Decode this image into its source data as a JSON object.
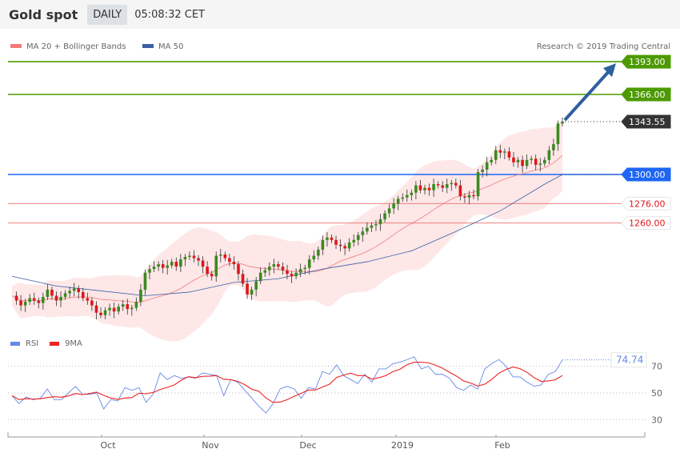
{
  "header": {
    "title": "Gold spot",
    "period": "DAILY",
    "time": "05:08:32 CET"
  },
  "legend": {
    "ma20": "MA 20 + Bollinger Bands",
    "ma50": "MA 50",
    "copyright": "Research © 2019 Trading Central",
    "rsi": "RSI",
    "rsi_ma": "9MA"
  },
  "colors": {
    "up": "#3a8a1e",
    "down": "#e0161b",
    "ma20": "#f47a7a",
    "band": "#fde3e3",
    "ma50": "#3a5fa8",
    "resistance": "#4c9a00",
    "pivot": "#1e66f5",
    "support": "#f08080",
    "rsi": "#6688e8",
    "rsi_ma": "#ee2222"
  },
  "levels": [
    {
      "value": 1393.0,
      "label": "1393.00",
      "kind": "resistance"
    },
    {
      "value": 1366.0,
      "label": "1366.00",
      "kind": "resistance"
    },
    {
      "value": 1343.55,
      "label": "1343.55",
      "kind": "last"
    },
    {
      "value": 1300.0,
      "label": "1300.00",
      "kind": "pivot"
    },
    {
      "value": 1276.0,
      "label": "1276.00",
      "kind": "support"
    },
    {
      "value": 1260.0,
      "label": "1260.00",
      "kind": "support"
    }
  ],
  "chart_data": [
    {
      "type": "candlestick",
      "ylim": [
        1175,
        1404
      ],
      "closes": [
        1200,
        1196,
        1192,
        1195,
        1198,
        1196,
        1194,
        1199,
        1205,
        1200,
        1196,
        1199,
        1202,
        1204,
        1206,
        1203,
        1198,
        1196,
        1192,
        1186,
        1184,
        1188,
        1190,
        1187,
        1191,
        1193,
        1189,
        1190,
        1195,
        1205,
        1219,
        1222,
        1224,
        1226,
        1223,
        1225,
        1228,
        1224,
        1230,
        1232,
        1233,
        1231,
        1229,
        1224,
        1218,
        1216,
        1233,
        1234,
        1231,
        1228,
        1226,
        1218,
        1210,
        1201,
        1205,
        1212,
        1219,
        1221,
        1224,
        1226,
        1224,
        1221,
        1218,
        1216,
        1219,
        1222,
        1223,
        1230,
        1233,
        1238,
        1246,
        1248,
        1246,
        1242,
        1241,
        1239,
        1244,
        1246,
        1250,
        1253,
        1256,
        1258,
        1259,
        1263,
        1268,
        1272,
        1276,
        1280,
        1281,
        1283,
        1285,
        1291,
        1287,
        1289,
        1287,
        1292,
        1291,
        1289,
        1292,
        1293,
        1291,
        1282,
        1281,
        1283,
        1282,
        1302,
        1304,
        1310,
        1312,
        1320,
        1318,
        1319,
        1314,
        1310,
        1312,
        1307,
        1312,
        1313,
        1308,
        1309,
        1312,
        1320,
        1325,
        1342,
        1343.55
      ],
      "ma50_every10": [
        1216,
        1208,
        1204,
        1200,
        1203,
        1211,
        1214,
        1222,
        1228,
        1237,
        1253,
        1270,
        1292,
        1300
      ],
      "forecast": {
        "from": 1343.55,
        "to": 1393.0
      }
    },
    {
      "type": "line",
      "ylim": [
        15,
        85
      ],
      "gridlines": [
        30,
        50,
        70
      ],
      "rsi": [
        48,
        42,
        47,
        45,
        46,
        53,
        45,
        45,
        50,
        55,
        49,
        49,
        50,
        38,
        45,
        44,
        54,
        52,
        54,
        43,
        49,
        65,
        60,
        63,
        61,
        62,
        61,
        65,
        64,
        63,
        48,
        60,
        58,
        52,
        46,
        40,
        35,
        42,
        53,
        55,
        53,
        46,
        54,
        53,
        66,
        64,
        71,
        63,
        60,
        57,
        64,
        58,
        68,
        68,
        72,
        73,
        75,
        77,
        68,
        70,
        64,
        64,
        61,
        54,
        52,
        56,
        53,
        68,
        72,
        75,
        70,
        62,
        62,
        58,
        55,
        56,
        64,
        66,
        74.74
      ],
      "last_label": "74.74",
      "x_ticks": [
        "Oct",
        "Nov",
        "Dec",
        "2019",
        "Feb"
      ]
    }
  ]
}
